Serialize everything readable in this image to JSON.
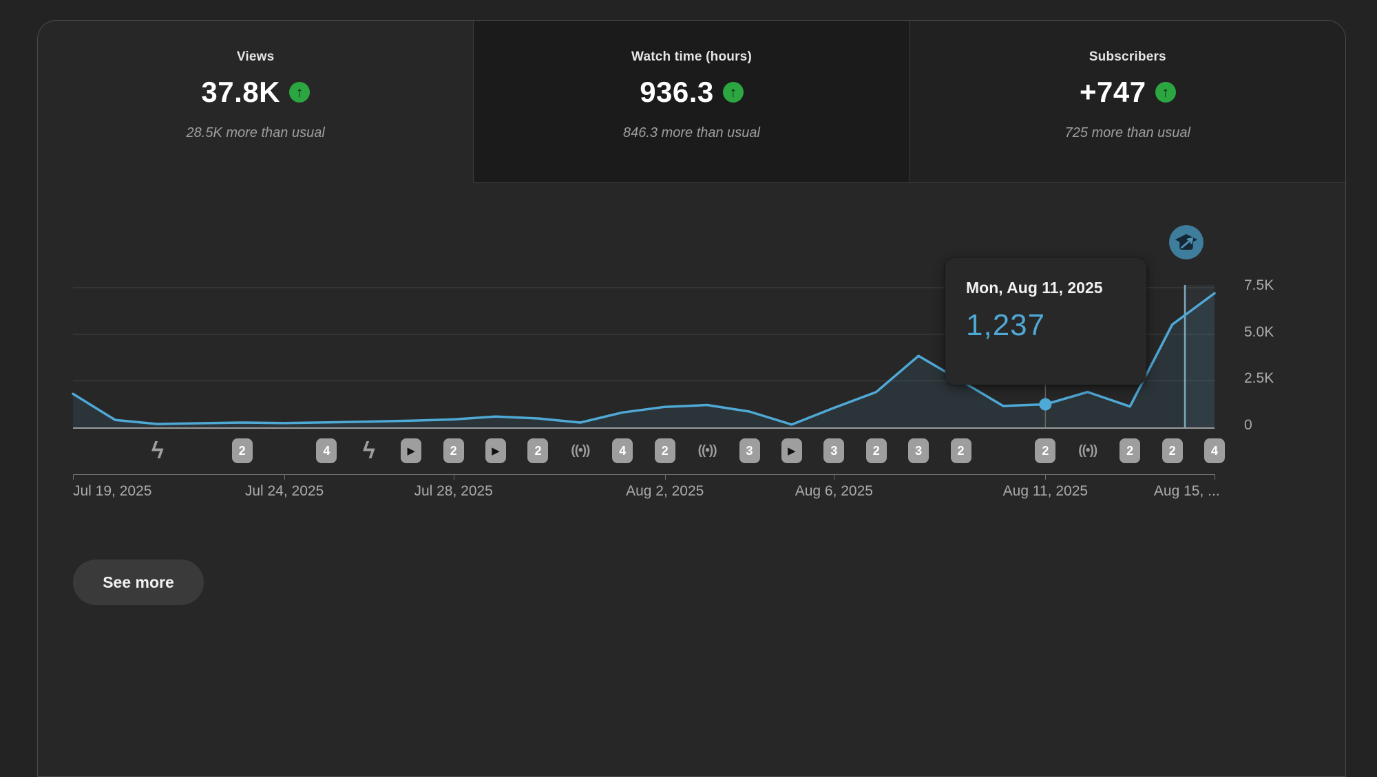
{
  "metrics": [
    {
      "label": "Views",
      "value": "37.8K",
      "delta": "28.5K more than usual",
      "selected": false
    },
    {
      "label": "Watch time (hours)",
      "value": "936.3",
      "delta": "846.3 more than usual",
      "selected": true
    },
    {
      "label": "Subscribers",
      "value": "+747",
      "delta": "725 more than usual",
      "selected": false
    }
  ],
  "up_arrow_glyph": "↑",
  "tooltip": {
    "date": "Mon, Aug 11, 2025",
    "value": "1,237"
  },
  "see_more_label": "See more",
  "colors": {
    "line": "#4fa9d6",
    "tooltip_value": "#4fa9d6",
    "positive_green": "#2ba640",
    "icon_gray": "#9e9e9e",
    "milestone_blue": "#3f7d9c"
  },
  "chart_data": {
    "type": "line",
    "title": "",
    "xlabel": "",
    "ylabel": "Views",
    "ylim": [
      0,
      7500
    ],
    "grid": true,
    "x": [
      "Jul 19",
      "Jul 20",
      "Jul 21",
      "Jul 22",
      "Jul 23",
      "Jul 24",
      "Jul 25",
      "Jul 26",
      "Jul 27",
      "Jul 28",
      "Jul 29",
      "Jul 30",
      "Jul 31",
      "Aug 1",
      "Aug 2",
      "Aug 3",
      "Aug 4",
      "Aug 5",
      "Aug 6",
      "Aug 7",
      "Aug 8",
      "Aug 9",
      "Aug 10",
      "Aug 11",
      "Aug 12",
      "Aug 13",
      "Aug 14",
      "Aug 15"
    ],
    "values": [
      1800,
      400,
      180,
      220,
      260,
      230,
      270,
      310,
      360,
      430,
      580,
      480,
      260,
      800,
      1100,
      1200,
      850,
      150,
      1050,
      1900,
      3840,
      2500,
      1150,
      1237,
      1900,
      1120,
      5520,
      7200
    ],
    "yticks": [
      {
        "label": "7.5K",
        "value": 7500
      },
      {
        "label": "5.0K",
        "value": 5000
      },
      {
        "label": "2.5K",
        "value": 2500
      },
      {
        "label": "0",
        "value": 0
      }
    ],
    "xticks": [
      {
        "text": "Jul 19, 2025",
        "day_index": 0,
        "align": "start"
      },
      {
        "text": "Jul 24, 2025",
        "day_index": 5,
        "align": "center"
      },
      {
        "text": "Jul 28, 2025",
        "day_index": 9,
        "align": "center"
      },
      {
        "text": "Aug 2, 2025",
        "day_index": 14,
        "align": "center"
      },
      {
        "text": "Aug 6, 2025",
        "day_index": 18,
        "align": "center"
      },
      {
        "text": "Aug 11, 2025",
        "day_index": 23,
        "align": "center"
      },
      {
        "text": "Aug 15, ...",
        "day_index": 27,
        "align": "end"
      }
    ],
    "highlighted_point": {
      "date": "Mon, Aug 11, 2025",
      "day_index": 23,
      "value": 1237
    },
    "milestone_marker": {
      "icon": "graduation-cap",
      "position_day_index": 26.3
    },
    "timeline_icons": [
      {
        "day_index": 2,
        "type": "shorts"
      },
      {
        "day_index": 4,
        "type": "count",
        "value": "2"
      },
      {
        "day_index": 6,
        "type": "count",
        "value": "4"
      },
      {
        "day_index": 7,
        "type": "shorts"
      },
      {
        "day_index": 8,
        "type": "video"
      },
      {
        "day_index": 9,
        "type": "count",
        "value": "2"
      },
      {
        "day_index": 10,
        "type": "video"
      },
      {
        "day_index": 11,
        "type": "count",
        "value": "2"
      },
      {
        "day_index": 12,
        "type": "live"
      },
      {
        "day_index": 13,
        "type": "count",
        "value": "4"
      },
      {
        "day_index": 14,
        "type": "count",
        "value": "2"
      },
      {
        "day_index": 15,
        "type": "live"
      },
      {
        "day_index": 16,
        "type": "count",
        "value": "3"
      },
      {
        "day_index": 17,
        "type": "video"
      },
      {
        "day_index": 18,
        "type": "count",
        "value": "3"
      },
      {
        "day_index": 19,
        "type": "count",
        "value": "2"
      },
      {
        "day_index": 20,
        "type": "count",
        "value": "3"
      },
      {
        "day_index": 21,
        "type": "count",
        "value": "2"
      },
      {
        "day_index": 23,
        "type": "count",
        "value": "2"
      },
      {
        "day_index": 24,
        "type": "live"
      },
      {
        "day_index": 25,
        "type": "count",
        "value": "2"
      },
      {
        "day_index": 26,
        "type": "count",
        "value": "2"
      },
      {
        "day_index": 27,
        "type": "count",
        "value": "4"
      }
    ],
    "icon_glyphs": {
      "shorts": "ϟ",
      "video": "▶",
      "live": "((•))"
    }
  }
}
